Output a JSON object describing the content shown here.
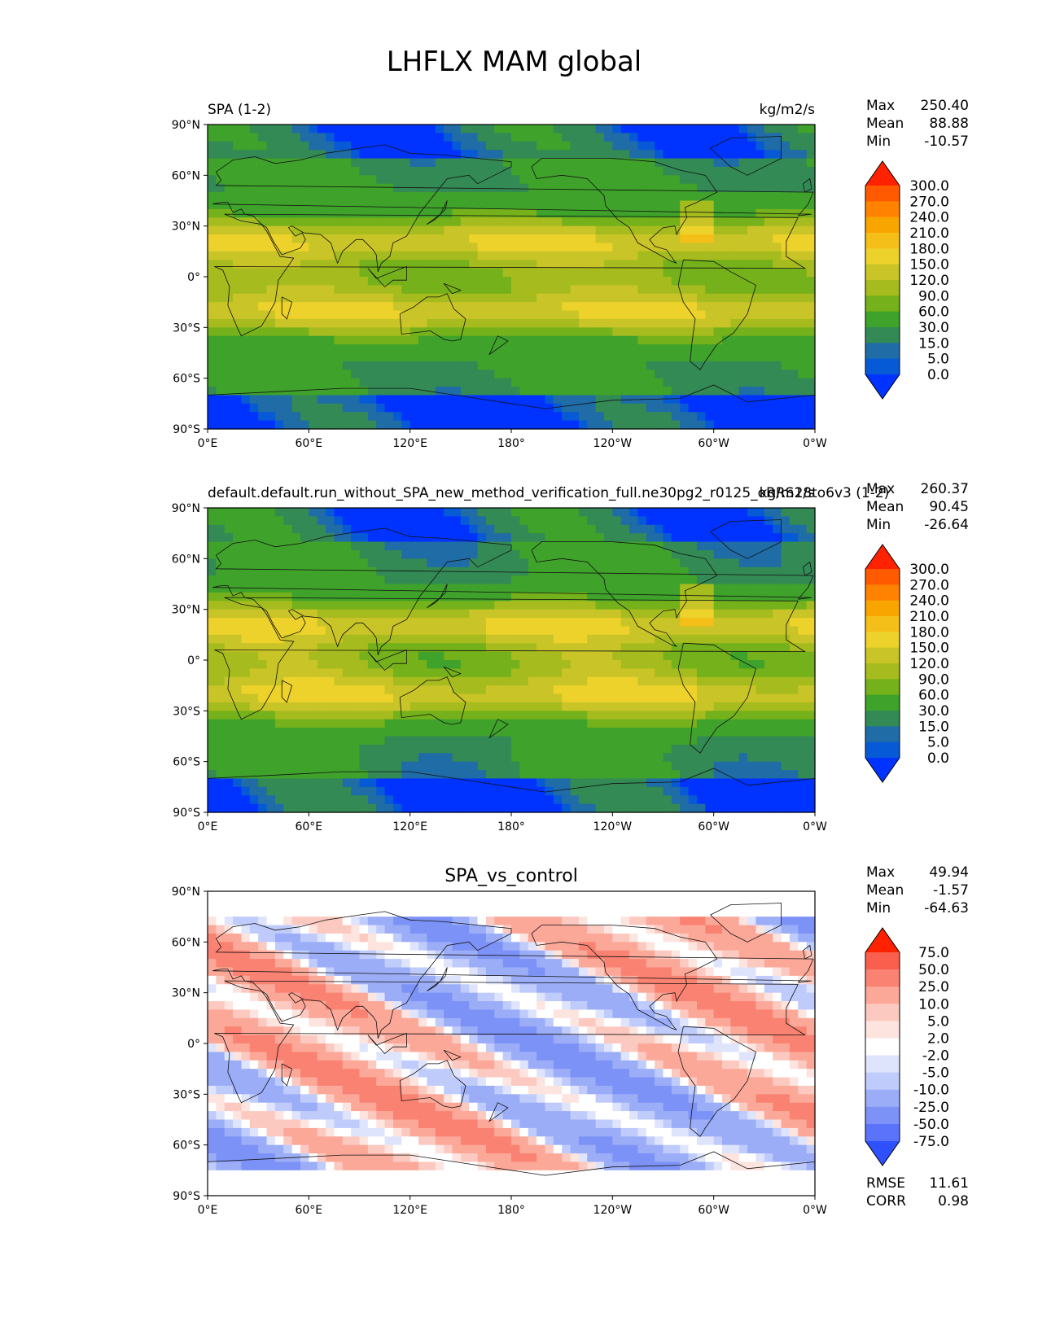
{
  "figure": {
    "title": "LHFLX MAM global",
    "lat_ticks": [
      "90°N",
      "60°N",
      "30°N",
      "0°",
      "30°S",
      "60°S",
      "90°S"
    ],
    "lon_ticks": [
      "0°E",
      "60°E",
      "120°E",
      "180°",
      "120°W",
      "60°W",
      "0°W"
    ]
  },
  "panels": [
    {
      "left_title": "SPA (1-2)",
      "center_title": "",
      "right_title": "kg/m2/s",
      "stats": [
        {
          "label": "Max",
          "value": "250.40"
        },
        {
          "label": "Mean",
          "value": "88.88"
        },
        {
          "label": "Min",
          "value": "-10.57"
        }
      ],
      "extra_stats": [],
      "colorbar": {
        "levels": [
          "300.0",
          "270.0",
          "240.0",
          "210.0",
          "180.0",
          "150.0",
          "120.0",
          "90.0",
          "60.0",
          "30.0",
          "15.0",
          "5.0",
          "0.0"
        ],
        "colors": [
          "#ff2200",
          "#ff5a00",
          "#ff8200",
          "#f8a500",
          "#f5bf1a",
          "#ecd22a",
          "#c9c427",
          "#a6bc1e",
          "#74b11a",
          "#3fa22a",
          "#338a55",
          "#1f6ca6",
          "#075ad6",
          "#0033ff"
        ],
        "extend": "both"
      }
    },
    {
      "left_title": "default.default.run_without_SPA_new_method_verification_full.ne30pg2_r0125_oRRS18to6v3 (1-2)",
      "center_title": "",
      "right_title": "kg/m2/s",
      "stats": [
        {
          "label": "Max",
          "value": "260.37"
        },
        {
          "label": "Mean",
          "value": "90.45"
        },
        {
          "label": "Min",
          "value": "-26.64"
        }
      ],
      "extra_stats": [],
      "colorbar": {
        "levels": [
          "300.0",
          "270.0",
          "240.0",
          "210.0",
          "180.0",
          "150.0",
          "120.0",
          "90.0",
          "60.0",
          "30.0",
          "15.0",
          "5.0",
          "0.0"
        ],
        "colors": [
          "#ff2200",
          "#ff5a00",
          "#ff8200",
          "#f8a500",
          "#f5bf1a",
          "#ecd22a",
          "#c9c427",
          "#a6bc1e",
          "#74b11a",
          "#3fa22a",
          "#338a55",
          "#1f6ca6",
          "#075ad6",
          "#0033ff"
        ],
        "extend": "both"
      }
    },
    {
      "left_title": "",
      "center_title": "SPA_vs_control",
      "right_title": "",
      "stats": [
        {
          "label": "Max",
          "value": "49.94"
        },
        {
          "label": "Mean",
          "value": "-1.57"
        },
        {
          "label": "Min",
          "value": "-64.63"
        }
      ],
      "extra_stats": [
        {
          "label": "RMSE",
          "value": "11.61"
        },
        {
          "label": "CORR",
          "value": "0.98"
        }
      ],
      "colorbar": {
        "levels": [
          "75.0",
          "50.0",
          "25.0",
          "10.0",
          "5.0",
          "2.0",
          "-2.0",
          "-5.0",
          "-10.0",
          "-25.0",
          "-50.0",
          "-75.0"
        ],
        "colors": [
          "#ff2200",
          "#f95f4c",
          "#f98273",
          "#fba899",
          "#fcc9c0",
          "#fde4df",
          "#ffffff",
          "#dfe4fd",
          "#bfcbfb",
          "#9cadf8",
          "#7d92f6",
          "#5a73fa",
          "#2f50fd"
        ],
        "extend": "both"
      }
    }
  ],
  "chart_data": [
    {
      "type": "heatmap",
      "title": "SPA (1-2)",
      "units": "kg/m2/s",
      "x_ticks": [
        "0°E",
        "60°E",
        "120°E",
        "180°",
        "120°W",
        "60°W",
        "0°W"
      ],
      "y_ticks": [
        "90°N",
        "60°N",
        "30°N",
        "0°",
        "30°S",
        "60°S",
        "90°S"
      ],
      "x_range": [
        0,
        360
      ],
      "y_range": [
        -90,
        90
      ],
      "contour_levels": [
        0,
        5,
        15,
        30,
        60,
        90,
        120,
        150,
        180,
        210,
        240,
        270,
        300
      ],
      "stats": {
        "max": 250.4,
        "mean": 88.88,
        "min": -10.57
      },
      "zonal_mean_by_lat": {
        "lat": [
          85,
          75,
          65,
          55,
          45,
          35,
          25,
          15,
          5,
          -5,
          -15,
          -25,
          -35,
          -45,
          -55,
          -65,
          -75,
          -85
        ],
        "value": [
          10,
          20,
          35,
          45,
          60,
          90,
          130,
          150,
          120,
          115,
          140,
          150,
          110,
          80,
          55,
          35,
          5,
          0
        ]
      }
    },
    {
      "type": "heatmap",
      "title": "default.default.run_without_SPA_new_method_verification_full.ne30pg2_r0125_oRRS18to6v3 (1-2)",
      "units": "kg/m2/s",
      "x_ticks": [
        "0°E",
        "60°E",
        "120°E",
        "180°",
        "120°W",
        "60°W",
        "0°W"
      ],
      "y_ticks": [
        "90°N",
        "60°N",
        "30°N",
        "0°",
        "30°S",
        "60°S",
        "90°S"
      ],
      "x_range": [
        0,
        360
      ],
      "y_range": [
        -90,
        90
      ],
      "contour_levels": [
        0,
        5,
        15,
        30,
        60,
        90,
        120,
        150,
        180,
        210,
        240,
        270,
        300
      ],
      "stats": {
        "max": 260.37,
        "mean": 90.45,
        "min": -26.64
      },
      "zonal_mean_by_lat": {
        "lat": [
          85,
          75,
          65,
          55,
          45,
          35,
          25,
          15,
          5,
          -5,
          -15,
          -25,
          -35,
          -45,
          -55,
          -65,
          -75,
          -85
        ],
        "value": [
          10,
          20,
          35,
          45,
          60,
          95,
          135,
          155,
          120,
          115,
          145,
          155,
          110,
          80,
          55,
          35,
          5,
          0
        ]
      }
    },
    {
      "type": "heatmap",
      "title": "SPA_vs_control",
      "x_ticks": [
        "0°E",
        "60°E",
        "120°E",
        "180°",
        "120°W",
        "60°W",
        "0°W"
      ],
      "y_ticks": [
        "90°N",
        "60°N",
        "30°N",
        "0°",
        "30°S",
        "60°S",
        "90°S"
      ],
      "x_range": [
        0,
        360
      ],
      "y_range": [
        -90,
        90
      ],
      "contour_levels": [
        -75,
        -50,
        -25,
        -10,
        -5,
        -2,
        2,
        5,
        10,
        25,
        50,
        75
      ],
      "stats": {
        "max": 49.94,
        "mean": -1.57,
        "min": -64.63,
        "rmse": 11.61,
        "corr": 0.98
      }
    }
  ]
}
